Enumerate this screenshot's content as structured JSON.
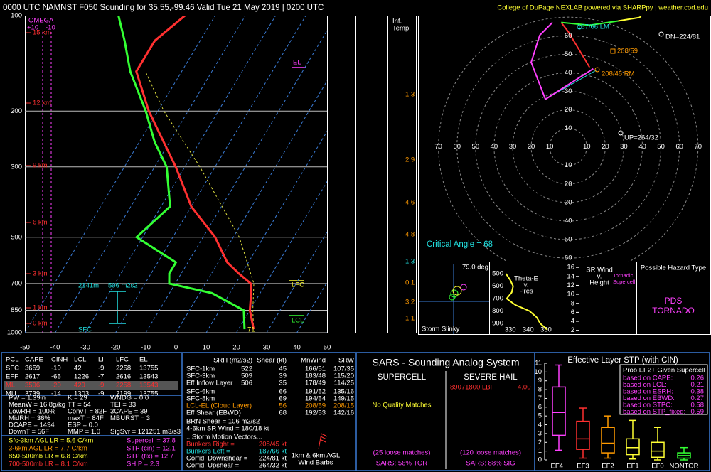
{
  "header": {
    "left": "0000 UTC NAMNST F050 Sounding for 35.55,-99.46 Valid  Tue 21 May 2019 | 0200 UTC",
    "right": "College of DuPage NEXLAB powered via SHARPpy | weather.cod.edu"
  },
  "skewt": {
    "plim": [
      1000,
      100
    ],
    "pticks": [
      100,
      200,
      300,
      500,
      700,
      850,
      1000
    ],
    "xlim": [
      -50,
      50
    ],
    "xticks": [
      -50,
      -40,
      -30,
      -20,
      -10,
      0,
      10,
      20,
      30,
      40,
      50
    ],
    "heights": [
      "15 km",
      "12 km",
      "9 km",
      "6 km",
      "3 km",
      "1 km",
      "0 km"
    ],
    "omega": [
      "OMEGA",
      "+10",
      "-10"
    ],
    "labels": {
      "el": "EL",
      "lfc": "LFC",
      "lcl": "LCL",
      "eff_height": "2141m",
      "eff_srh": "506 m2s2",
      "sfc": "SFC",
      "sfc_temp": "71"
    },
    "pressure": [
      975,
      850,
      750,
      700,
      650,
      600,
      500,
      400,
      300,
      250,
      200,
      150,
      120,
      100
    ],
    "temperature": [
      25,
      20,
      17,
      15,
      9,
      3,
      -6,
      -20,
      -33,
      -42,
      -53,
      -65,
      -65,
      -60
    ],
    "dewpoint": [
      22,
      18,
      4,
      -12,
      -14,
      -14,
      -32,
      -27,
      -36,
      -45,
      -54,
      -67,
      -75,
      -82
    ],
    "parcel_pressure": [
      975,
      850,
      700,
      500,
      300,
      200,
      150
    ],
    "parcel_temperature": [
      25,
      21,
      16,
      2,
      -25,
      -48,
      -62
    ],
    "colors": {
      "temperature": "#ff3030",
      "dewpoint": "#33ff33",
      "parcel": "#e0e040",
      "isotherm": "#3a7bd5",
      "isobar": "#bbbbbb"
    }
  },
  "inferred_temp": {
    "title": [
      "Inf.",
      "Temp."
    ],
    "values": [
      "1.3",
      "2.9",
      "4.6",
      "4.8",
      "1.3",
      "0.1",
      "3.2",
      "1.1"
    ],
    "colors": [
      "#ff9a00",
      "#ff9a00",
      "#ff9a00",
      "#ff9a00",
      "#22e0e0",
      "#ff9a00",
      "#ff9a00",
      "#ff9a00"
    ]
  },
  "hodograph": {
    "xlim": [
      -81,
      77
    ],
    "ylim": [
      -62,
      71
    ],
    "hticks": [
      10,
      20,
      30,
      40,
      50,
      60,
      70
    ],
    "vticks": [
      10,
      20,
      30,
      40,
      50,
      60
    ],
    "segments": [
      {
        "color": "#ff40ff",
        "u": [
          13.5,
          -12.3,
          -20,
          -15.4,
          -8.5
        ],
        "v": [
          42.3,
          25.8,
          45.8,
          60.4,
          67.3
        ]
      },
      {
        "color": "#ff3030",
        "u": [
          11.5,
          5.8,
          0,
          -3.8
        ],
        "v": [
          43.1,
          52.7,
          62.3,
          67.3
        ]
      },
      {
        "color": "#33ff33",
        "u": [
          -3.8,
          11.5,
          26.9
        ],
        "v": [
          67.3,
          65.8,
          68.1
        ]
      },
      {
        "color": "#ffff33",
        "u": [
          26.9,
          38.5,
          44.2
        ],
        "v": [
          68.1,
          70,
          76.5
        ]
      }
    ],
    "labels": {
      "lm": "187/66 LM",
      "dn": "DN=224/81",
      "mean": "208/59",
      "rm": "208/45 RM",
      "up": "UP=264/32",
      "critical": "Critical Angle = 68"
    }
  },
  "storm_slinky": {
    "angle": "79.0 deg",
    "title": "Storm Slinky"
  },
  "theta_e": {
    "title": [
      "Theta-E",
      "v.",
      "Pres"
    ],
    "ylim": [
      425,
      985
    ],
    "yticks": [
      500,
      600,
      700,
      800,
      900
    ],
    "xlim": [
      319,
      358
    ],
    "xticks": [
      330,
      340,
      350
    ],
    "pressure": [
      500,
      550,
      600,
      650,
      700,
      750,
      800,
      850,
      900,
      950
    ],
    "values": [
      327.6,
      330,
      331.6,
      330.8,
      328,
      332.8,
      340.8,
      344.8,
      346.8,
      350.8
    ]
  },
  "sr_wind": {
    "title": [
      "SR Wind",
      "v.",
      "Height"
    ],
    "ylim": [
      1,
      16.5
    ],
    "yticks": [
      2,
      4,
      6,
      8,
      10,
      12,
      14,
      16
    ],
    "label": [
      "Tornadic",
      "Supercell"
    ]
  },
  "hazard": {
    "title": "Possible Hazard Type",
    "type": [
      "PDS",
      "TORNADO"
    ]
  },
  "parcels": {
    "header": [
      "PCL",
      "CAPE",
      "CINH",
      "LCL",
      "LI",
      "LFC",
      "EL"
    ],
    "rows": [
      [
        "SFC",
        "3659",
        "-19",
        "42",
        "-9",
        "2258",
        "13755"
      ],
      [
        "EFF",
        "2617",
        "-65",
        "1226",
        "-7",
        "2616",
        "13543"
      ],
      [
        "ML",
        "3596",
        "-20",
        "429",
        "-9",
        "2258",
        "13543"
      ],
      [
        "MU",
        "3739",
        "-14",
        "1303",
        "-9",
        "2199",
        "13755"
      ]
    ]
  },
  "indices": [
    [
      "PW = 1.39in",
      "K = 29",
      "WNDG = 0.0"
    ],
    [
      "MeanW = 16.8g/kg",
      "TT = 54",
      "TEI = 33"
    ],
    [
      "LowRH = 100%",
      "ConvT = 82F",
      "3CAPE = 39"
    ],
    [
      "MidRH = 36%",
      "maxT = 84F",
      "MBURST = 3"
    ],
    [
      "DCAPE = 1494",
      "ESP = 0.0"
    ],
    [
      "DownT = 56F",
      "MMP = 1.0",
      "SigSvr = 121251 m3/s3"
    ]
  ],
  "lapse_rates": [
    "Sfc-3km AGL LR = 5.6 C/km",
    "3-6km AGL LR = 7.7 C/km",
    "850-500mb LR = 6.8 C/km",
    "700-500mb LR = 8.1 C/km"
  ],
  "composites": [
    "Supercell = 37.8",
    "STP (cin) = 12.1",
    "STP (fix) = 12.7",
    "SHIP = 2.3"
  ],
  "kinematics": {
    "header": [
      "SRH (m2/s2)",
      "Shear (kt)",
      "MnWind",
      "SRW"
    ],
    "rows": [
      {
        "label": "SFC-1km",
        "srh": "522",
        "shear": "45",
        "mnwind": "166/51",
        "srw": "107/35"
      },
      {
        "label": "SFC-3km",
        "srh": "509",
        "shear": "39",
        "mnwind": "183/48",
        "srw": "115/20"
      },
      {
        "label": "Eff Inflow Layer",
        "srh": "506",
        "shear": "35",
        "mnwind": "178/49",
        "srw": "114/25"
      },
      {
        "label": "SFC-6km",
        "shear": "66",
        "mnwind": "191/52",
        "srw": "135/16"
      },
      {
        "label": "SFC-8km",
        "shear": "69",
        "mnwind": "194/54",
        "srw": "149/15"
      },
      {
        "label": "LCL-EL (Cloud Layer)",
        "shear": "56",
        "mnwind": "208/59",
        "srw": "208/15"
      },
      {
        "label": "Eff Shear (EBWD)",
        "shear": "68",
        "mnwind": "192/53",
        "srw": "142/16"
      }
    ],
    "lines": [
      "BRN Shear = 106 m2/s2",
      "4-6km SR Wind = 180/18 kt"
    ],
    "motion_title": "...Storm Motion Vectors...",
    "motions": [
      {
        "label": "Bunkers Right =",
        "value": "208/45 kt"
      },
      {
        "label": "Bunkers Left =",
        "value": "187/66 kt"
      },
      {
        "label": "Corfidi Downshear =",
        "value": "224/81 kt"
      },
      {
        "label": "Corfidi Upshear =",
        "value": "264/32 kt"
      }
    ],
    "barbs": [
      "1km & 6km AGL",
      "Wind Barbs"
    ]
  },
  "sars": {
    "title": "SARS - Sounding Analog System",
    "supercell": "SUPERCELL",
    "hail": "SEVERE HAIL",
    "no_match": "No Quality Matches",
    "hail_match": "89071800 LBF",
    "hail_size": "4.00",
    "supercell_loose": "(25 loose matches)",
    "hail_loose": "(120 loose matches)",
    "supercell_prob": "SARS: 56% TOR",
    "hail_prob": "SARS: 88% SIG"
  },
  "stp": {
    "title": "Effective Layer STP (with CIN)",
    "ylim": [
      0,
      11
    ],
    "yticks": [
      0,
      1,
      2,
      3,
      4,
      5,
      6,
      7,
      8,
      9,
      10,
      11
    ],
    "categories": [
      "EF4+",
      "EF3",
      "EF2",
      "EF1",
      "EF0",
      "NONTOR"
    ],
    "colors": [
      "#ff40ff",
      "#ff3030",
      "#ff9a00",
      "#ffff33",
      "#ffff33",
      "#33ff33"
    ],
    "min": [
      1.1,
      0.2,
      0.2,
      0.1,
      0,
      0
    ],
    "q1": [
      2.8,
      1.2,
      0.8,
      0.6,
      0.3,
      0.2
    ],
    "median": [
      5.4,
      2.4,
      1.9,
      1.4,
      1,
      0.5
    ],
    "q3": [
      8.3,
      4.4,
      3.7,
      2.4,
      2,
      0.8
    ],
    "max": [
      10.8,
      5.9,
      5,
      4.5,
      3.7,
      1.4
    ],
    "prob_title": "Prob EF2+ Given Supercell",
    "prob": [
      [
        "based on CAPE:",
        "0.26"
      ],
      [
        "based on LCL:",
        "0.21"
      ],
      [
        "based on ESRH:",
        "0.38"
      ],
      [
        "based on EBWD:",
        "0.27"
      ],
      [
        "based on STPC:",
        "0.58"
      ],
      [
        "based on STP_fixed:",
        "0.59"
      ]
    ]
  }
}
